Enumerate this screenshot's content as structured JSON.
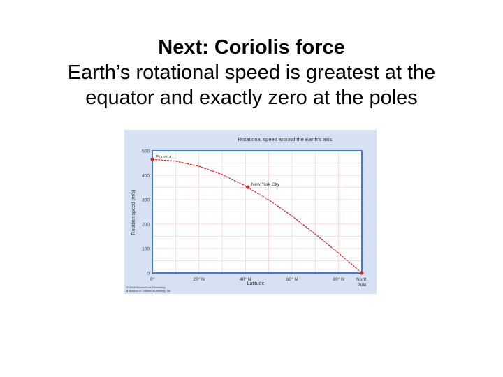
{
  "slide": {
    "heading": "Next: Coriolis force",
    "body_line1": "Earth’s rotational speed is greatest at the",
    "body_line2": "equator and exactly zero at the poles"
  },
  "credit": {
    "line1": "© 2009 Brooks/Cole Publishing",
    "line2": "a division of Thomson Learning, Inc."
  },
  "colors": {
    "frame": "#d6e2f4",
    "axis": "#4a78c8",
    "grid": "#f0d2d2",
    "curve": "#c8282a",
    "text": "#333333"
  },
  "chart_data": {
    "type": "line",
    "title": "Rotational speed around the Earth's axis",
    "xlabel": "Latitude",
    "ylabel": "Rotation speed (m/s)",
    "xlim": [
      0,
      90
    ],
    "ylim": [
      0,
      500
    ],
    "x_ticks": [
      {
        "value": 0,
        "label": "0°"
      },
      {
        "value": 20,
        "label": "20° N"
      },
      {
        "value": 40,
        "label": "40° N"
      },
      {
        "value": 60,
        "label": "60° N"
      },
      {
        "value": 80,
        "label": "80° N"
      }
    ],
    "x_end_label": [
      "North",
      "Pole"
    ],
    "y_ticks": [
      0,
      100,
      200,
      300,
      400,
      500
    ],
    "series": [
      {
        "x": [
          0,
          10,
          20,
          30,
          40,
          50,
          60,
          70,
          80,
          90
        ],
        "y": [
          465,
          458,
          437,
          403,
          356,
          299,
          233,
          159,
          81,
          0
        ]
      }
    ],
    "annotations": [
      {
        "label": "Equator",
        "x": 0,
        "y": 465
      },
      {
        "label": "New York City",
        "x": 41,
        "y": 351
      },
      {
        "label": "",
        "x": 90,
        "y": 0
      }
    ]
  }
}
